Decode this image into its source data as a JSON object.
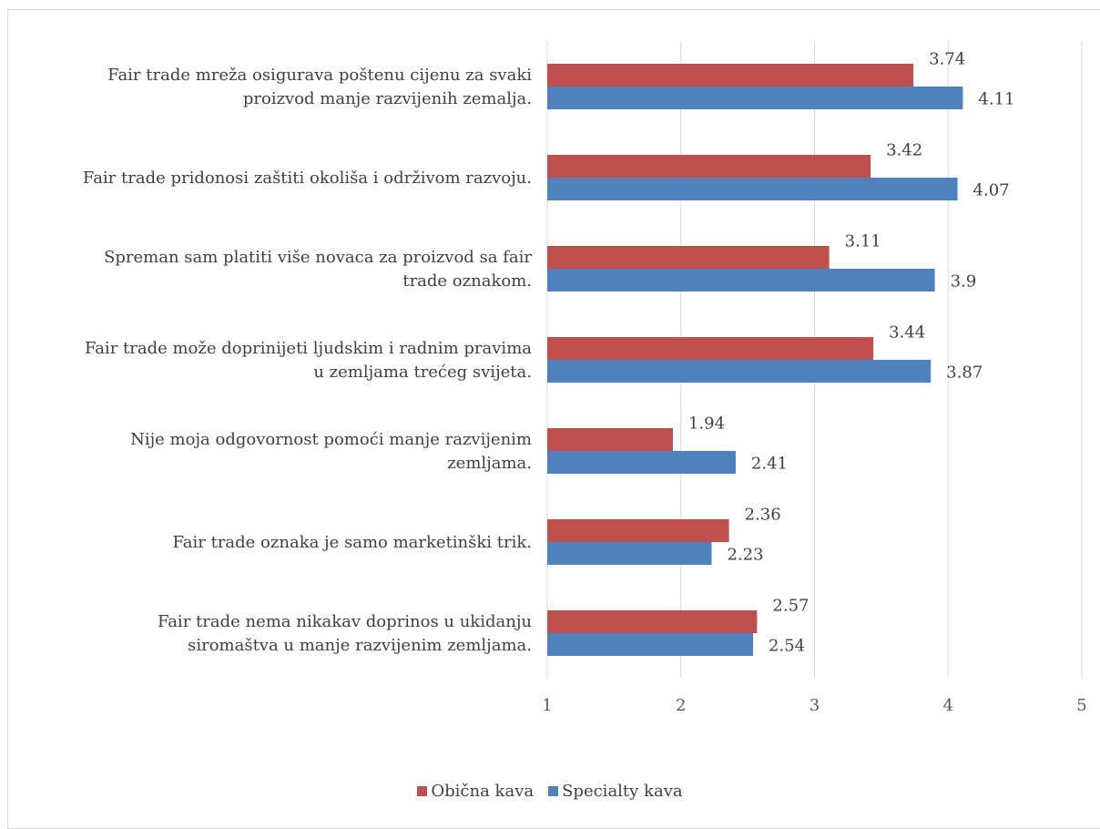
{
  "chart_data": {
    "type": "bar",
    "orientation": "horizontal",
    "categories": [
      [
        "Fair trade mreža osigurava poštenu cijenu za svaki",
        "proizvod manje razvijenih zemalja."
      ],
      [
        "Fair trade pridonosi zaštiti okoliša i održivom razvoju."
      ],
      [
        "Spreman sam platiti više novaca za proizvod sa fair",
        "trade oznakom."
      ],
      [
        "Fair trade može doprinijeti ljudskim i radnim pravima",
        "u zemljama trećeg svijeta."
      ],
      [
        "Nije moja odgovornost pomoći manje razvijenim",
        "zemljama."
      ],
      [
        "Fair trade oznaka je samo marketinški trik."
      ],
      [
        "Fair trade nema nikakav doprinos u ukidanju",
        "siromaštva u manje razvijenim zemljama."
      ]
    ],
    "series": [
      {
        "name": "Obična kava",
        "color": "#c0504d",
        "values": [
          3.74,
          3.42,
          3.11,
          3.44,
          1.94,
          2.36,
          2.57
        ],
        "labels": [
          "3.74",
          "3.42",
          "3.11",
          "3.44",
          "1.94",
          "2.36",
          "2.57"
        ]
      },
      {
        "name": "Specialty kava",
        "color": "#4f81bd",
        "values": [
          4.11,
          4.07,
          3.9,
          3.87,
          2.41,
          2.23,
          2.54
        ],
        "labels": [
          "4.11",
          "4.07",
          "3.9",
          "3.87",
          "2.41",
          "2.23",
          "2.54"
        ]
      }
    ],
    "xlim": [
      1,
      5
    ],
    "xticks": [
      "1",
      "2",
      "3",
      "4",
      "5"
    ],
    "grid": true,
    "gridline_color": "#d9d9d9",
    "legend_position": "bottom-center"
  }
}
